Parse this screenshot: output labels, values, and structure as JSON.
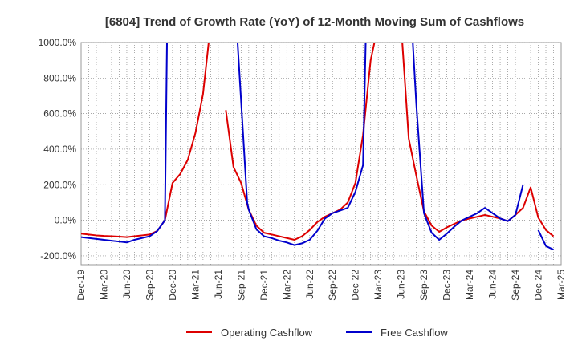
{
  "chart_data": {
    "type": "line",
    "title": "[6804]  Trend of Growth Rate (YoY) of 12-Month Moving Sum of Cashflows",
    "xlabel": "",
    "ylabel": "",
    "ylim": [
      -250,
      1000
    ],
    "y_ticks": [
      -200,
      0,
      200,
      400,
      600,
      800,
      1000
    ],
    "y_tick_labels": [
      "-200.0%",
      "0.0%",
      "200.0%",
      "400.0%",
      "600.0%",
      "800.0%",
      "1000.0%"
    ],
    "x_tick_labels": [
      "Dec-19",
      "Mar-20",
      "Jun-20",
      "Sep-20",
      "Dec-20",
      "Mar-21",
      "Jun-21",
      "Sep-21",
      "Dec-21",
      "Mar-22",
      "Jun-22",
      "Sep-22",
      "Dec-22",
      "Mar-23",
      "Jun-23",
      "Sep-23",
      "Dec-23",
      "Mar-24",
      "Jun-24",
      "Sep-24",
      "Dec-24",
      "Mar-25"
    ],
    "x_range_months": [
      0,
      63
    ],
    "grid": true,
    "legend_position": "bottom",
    "series": [
      {
        "name": "Operating Cashflow",
        "color": "#dd0000",
        "points": [
          [
            0,
            -75
          ],
          [
            1,
            -80
          ],
          [
            2,
            -85
          ],
          [
            3,
            -88
          ],
          [
            4,
            -90
          ],
          [
            5,
            -92
          ],
          [
            6,
            -95
          ],
          [
            7,
            -90
          ],
          [
            8,
            -85
          ],
          [
            9,
            -80
          ],
          [
            10,
            -60
          ],
          [
            11,
            0
          ],
          [
            12,
            210
          ],
          [
            13,
            260
          ],
          [
            14,
            340
          ],
          [
            15,
            490
          ],
          [
            16,
            710
          ],
          [
            17,
            1100
          ],
          null,
          [
            19,
            620
          ],
          [
            20,
            300
          ],
          [
            21,
            210
          ],
          [
            22,
            60
          ],
          [
            23,
            -30
          ],
          [
            24,
            -70
          ],
          [
            25,
            -80
          ],
          [
            26,
            -90
          ],
          [
            27,
            -100
          ],
          [
            28,
            -110
          ],
          [
            29,
            -90
          ],
          [
            30,
            -55
          ],
          [
            31,
            -10
          ],
          [
            32,
            20
          ],
          [
            33,
            40
          ],
          [
            34,
            60
          ],
          [
            35,
            100
          ],
          [
            36,
            210
          ],
          [
            37,
            480
          ],
          [
            38,
            900
          ],
          [
            39,
            1100
          ],
          null,
          [
            42,
            1100
          ],
          [
            43,
            460
          ],
          [
            44,
            250
          ],
          [
            45,
            50
          ],
          [
            46,
            -30
          ],
          [
            47,
            -65
          ],
          [
            48,
            -40
          ],
          [
            49,
            -20
          ],
          [
            50,
            0
          ],
          [
            51,
            10
          ],
          [
            52,
            20
          ],
          [
            53,
            30
          ],
          [
            54,
            20
          ],
          [
            55,
            10
          ],
          [
            56,
            -5
          ],
          [
            57,
            30
          ],
          [
            58,
            70
          ],
          [
            59,
            185
          ],
          [
            60,
            15
          ],
          [
            61,
            -55
          ],
          [
            62,
            -90
          ]
        ]
      },
      {
        "name": "Free Cashflow",
        "color": "#0000cc",
        "points": [
          [
            0,
            -95
          ],
          [
            1,
            -100
          ],
          [
            2,
            -105
          ],
          [
            3,
            -110
          ],
          [
            4,
            -115
          ],
          [
            5,
            -120
          ],
          [
            6,
            -125
          ],
          [
            7,
            -110
          ],
          [
            8,
            -100
          ],
          [
            9,
            -90
          ],
          [
            10,
            -60
          ],
          [
            11,
            0
          ],
          [
            11.3,
            1100
          ],
          null,
          [
            20.4,
            1100
          ],
          [
            21.8,
            100
          ],
          [
            22,
            60
          ],
          [
            23,
            -50
          ],
          [
            24,
            -90
          ],
          [
            25,
            -100
          ],
          [
            26,
            -115
          ],
          [
            27,
            -125
          ],
          [
            28,
            -140
          ],
          [
            29,
            -130
          ],
          [
            30,
            -110
          ],
          [
            31,
            -60
          ],
          [
            32,
            10
          ],
          [
            33,
            40
          ],
          [
            34,
            55
          ],
          [
            35,
            70
          ],
          [
            36,
            160
          ],
          [
            37,
            310
          ],
          [
            37.4,
            1100
          ],
          null,
          [
            43.4,
            1100
          ],
          [
            44,
            650
          ],
          [
            45,
            40
          ],
          [
            46,
            -70
          ],
          [
            47,
            -110
          ],
          [
            48,
            -75
          ],
          [
            49,
            -35
          ],
          [
            50,
            0
          ],
          [
            51,
            20
          ],
          [
            52,
            40
          ],
          [
            53,
            70
          ],
          [
            54,
            40
          ],
          [
            55,
            10
          ],
          [
            56,
            -5
          ],
          [
            57,
            30
          ],
          [
            58,
            200
          ],
          null,
          [
            60,
            -55
          ],
          [
            61,
            -145
          ],
          [
            62,
            -165
          ]
        ]
      }
    ]
  }
}
